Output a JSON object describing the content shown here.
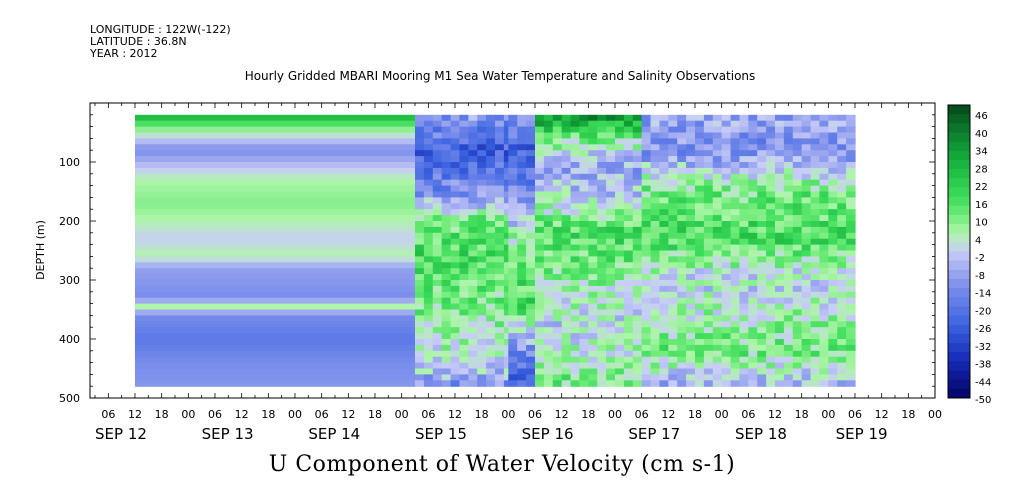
{
  "header": {
    "longitude": "LONGITUDE : 122W(-122)",
    "latitude": "LATITUDE : 36.8N",
    "year": "YEAR : 2012"
  },
  "chart_data": {
    "type": "heatmap",
    "title": "Hourly Gridded MBARI Mooring M1 Sea Water Temperature and Salinity Observations",
    "xlabel": "U Component of Water Velocity (cm s-1)",
    "ylabel": "DEPTH (m)",
    "ylim": [
      500,
      0
    ],
    "y_ticks": [
      100,
      200,
      300,
      400,
      500
    ],
    "x_hour_ticks": [
      "06",
      "12",
      "18",
      "00",
      "06",
      "12",
      "18",
      "00",
      "06",
      "12",
      "18",
      "00",
      "06",
      "12",
      "18",
      "00",
      "06",
      "12",
      "18",
      "00",
      "06",
      "12",
      "18",
      "00",
      "06",
      "12",
      "18",
      "00",
      "06",
      "12",
      "18",
      "00"
    ],
    "x_day_labels": [
      "SEP 12",
      "SEP 13",
      "SEP 14",
      "SEP 15",
      "SEP 16",
      "SEP 17",
      "SEP 18",
      "SEP 19"
    ],
    "colorbar_labels": [
      "46",
      "40",
      "34",
      "28",
      "22",
      "16",
      "10",
      "4",
      "-2",
      "-8",
      "-14",
      "-20",
      "-26",
      "-32",
      "-38",
      "-44",
      "-50"
    ],
    "colorbar_range": [
      -50,
      46
    ],
    "data_start": "SEP 12 12:00",
    "data_end": "SEP 19 06:00",
    "depth_range": [
      20,
      480
    ],
    "bands": [
      {
        "time": "SEP 12 12 - SEP 15 03",
        "profile": [
          [
            20,
            28
          ],
          [
            40,
            10
          ],
          [
            80,
            -14
          ],
          [
            130,
            4
          ],
          [
            170,
            8
          ],
          [
            210,
            2
          ],
          [
            230,
            -2
          ],
          [
            260,
            4
          ],
          [
            280,
            -10
          ],
          [
            330,
            -14
          ],
          [
            345,
            4
          ],
          [
            360,
            -14
          ],
          [
            400,
            -20
          ],
          [
            440,
            -14
          ],
          [
            480,
            -12
          ]
        ]
      },
      {
        "time": "SEP 15 03 - SEP 16 00",
        "profile": [
          [
            20,
            -10
          ],
          [
            80,
            -26
          ],
          [
            150,
            -14
          ],
          [
            200,
            10
          ],
          [
            260,
            16
          ],
          [
            320,
            10
          ],
          [
            400,
            4
          ],
          [
            450,
            -2
          ],
          [
            480,
            -14
          ]
        ]
      },
      {
        "time": "SEP 16 00 - SEP 16 06",
        "profile": [
          [
            20,
            -14
          ],
          [
            80,
            -26
          ],
          [
            180,
            -8
          ],
          [
            260,
            10
          ],
          [
            340,
            16
          ],
          [
            420,
            -14
          ],
          [
            480,
            -26
          ]
        ]
      },
      {
        "time": "SEP 16 06 - SEP 17 06",
        "profile": [
          [
            20,
            34
          ],
          [
            60,
            10
          ],
          [
            110,
            -10
          ],
          [
            160,
            -2
          ],
          [
            220,
            16
          ],
          [
            270,
            10
          ],
          [
            320,
            4
          ],
          [
            380,
            -2
          ],
          [
            430,
            4
          ],
          [
            480,
            10
          ]
        ]
      },
      {
        "time": "SEP 17 06 - SEP 19 06",
        "profile": [
          [
            20,
            -8
          ],
          [
            80,
            -14
          ],
          [
            150,
            10
          ],
          [
            230,
            16
          ],
          [
            300,
            -2
          ],
          [
            360,
            4
          ],
          [
            420,
            10
          ],
          [
            480,
            -8
          ]
        ]
      }
    ],
    "grid": false,
    "legend": "colorbar-right"
  }
}
